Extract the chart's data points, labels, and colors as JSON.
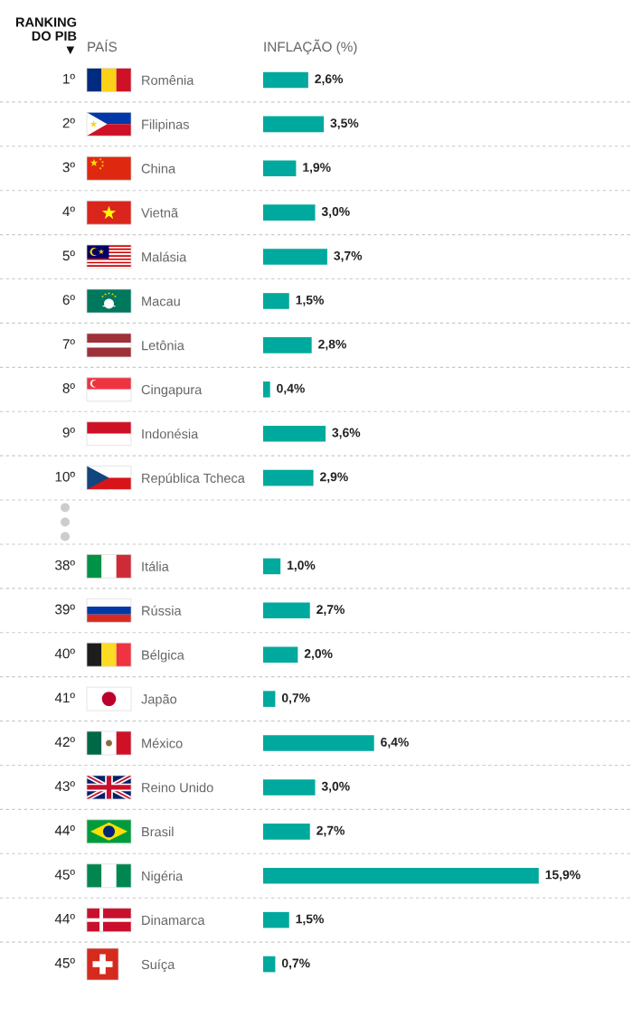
{
  "chart_data": {
    "type": "bar",
    "orientation": "horizontal",
    "xlabel": "INFLAÇÃO (%)",
    "ylabel": "PAÍS",
    "categories": [
      "Romênia",
      "Filipinas",
      "China",
      "Vietnã",
      "Malásia",
      "Macau",
      "Letônia",
      "Cingapura",
      "Indonésia",
      "República Tcheca",
      null,
      "Itália",
      "Rússia",
      "Bélgica",
      "Japão",
      "México",
      "Reino Unido",
      "Brasil",
      "Nigéria",
      "Dinamarca",
      "Suíça"
    ],
    "values": [
      2.6,
      3.5,
      1.9,
      3.0,
      3.7,
      1.5,
      2.8,
      0.4,
      3.6,
      2.9,
      null,
      1.0,
      2.7,
      2.0,
      0.7,
      6.4,
      3.0,
      2.7,
      15.9,
      1.5,
      0.7
    ],
    "value_labels": [
      "2,6%",
      "3,5%",
      "1,9%",
      "3,0%",
      "3,7%",
      "1,5%",
      "2,8%",
      "0,4%",
      "3,6%",
      "2,9%",
      null,
      "1,0%",
      "2,7%",
      "2,0%",
      "0,7%",
      "6,4%",
      "3,0%",
      "2,7%",
      "15,9%",
      "1,5%",
      "0,7%"
    ],
    "color": "#00a99d",
    "grid": "y",
    "tick_labels": "y",
    "annotations": [
      "RANKING\nDO PIB\n▼",
      "1º",
      "2º",
      "3º",
      "4º",
      "5º",
      "6º",
      "7º",
      "8º",
      "9º",
      "10º",
      "38º",
      "39º",
      "40º",
      "41º",
      "42º",
      "43º",
      "44º",
      "45º",
      "44º",
      "45º"
    ]
  }
}
